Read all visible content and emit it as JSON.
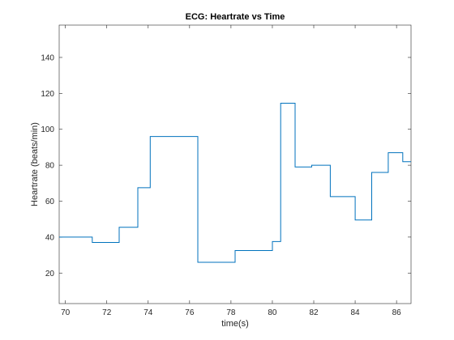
{
  "chart_data": {
    "type": "line",
    "step": true,
    "title": "ECG: Heartrate vs Time",
    "xlabel": "time(s)",
    "ylabel": "Heartrate (beats/min)",
    "xlim": [
      69.7,
      86.7
    ],
    "ylim": [
      3,
      158
    ],
    "xticks": [
      70,
      72,
      74,
      76,
      78,
      80,
      82,
      84,
      86
    ],
    "yticks": [
      20,
      40,
      60,
      80,
      100,
      120,
      140
    ],
    "grid": false,
    "box": true,
    "colors": {
      "line": "#0072bd",
      "axes": "#262626"
    },
    "series": [
      {
        "x": [
          69.7,
          71.3,
          72.6,
          73.5,
          74.1,
          76.4,
          78.2,
          80.0,
          80.4,
          81.1,
          81.9,
          82.8,
          84.0,
          84.8,
          85.6,
          86.3,
          86.7
        ],
        "y": [
          40,
          37,
          45.5,
          67.5,
          96,
          26,
          32.5,
          37.5,
          114.5,
          79,
          80,
          62.5,
          49.5,
          76,
          87,
          82,
          82
        ]
      }
    ]
  }
}
